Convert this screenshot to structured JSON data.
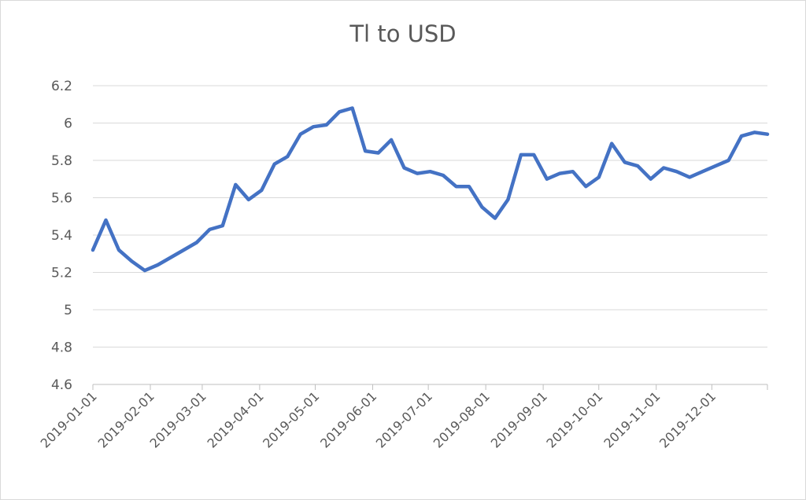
{
  "chart_data": {
    "type": "line",
    "title": "Tl to USD",
    "xlabel": "",
    "ylabel": "",
    "ylim": [
      4.6,
      6.2
    ],
    "y_ticks": [
      "4.6",
      "4.8",
      "5",
      "5.2",
      "5.4",
      "5.6",
      "5.8",
      "6",
      "6.2"
    ],
    "x_range": [
      "2019-01-01",
      "2019-12-31"
    ],
    "x_ticks": [
      "2019-01-01",
      "2019-02-01",
      "2019-03-01",
      "2019-04-01",
      "2019-05-01",
      "2019-06-01",
      "2019-07-01",
      "2019-08-01",
      "2019-09-01",
      "2019-10-01",
      "2019-11-01",
      "2019-12-01"
    ],
    "grid": "horizontal",
    "legend": "none",
    "series_color": "#4472c4",
    "series": [
      {
        "x": [
          "2019-01-01",
          "2019-01-08",
          "2019-01-15",
          "2019-01-22",
          "2019-01-29",
          "2019-02-05",
          "2019-02-12",
          "2019-02-19",
          "2019-02-26",
          "2019-03-05",
          "2019-03-12",
          "2019-03-19",
          "2019-03-26",
          "2019-04-02",
          "2019-04-09",
          "2019-04-16",
          "2019-04-23",
          "2019-04-30",
          "2019-05-07",
          "2019-05-14",
          "2019-05-21",
          "2019-05-28",
          "2019-06-04",
          "2019-06-11",
          "2019-06-18",
          "2019-06-25",
          "2019-07-02",
          "2019-07-09",
          "2019-07-16",
          "2019-07-23",
          "2019-07-30",
          "2019-08-06",
          "2019-08-13",
          "2019-08-20",
          "2019-08-27",
          "2019-09-03",
          "2019-09-10",
          "2019-09-17",
          "2019-09-24",
          "2019-10-01",
          "2019-10-08",
          "2019-10-15",
          "2019-10-22",
          "2019-10-29",
          "2019-11-05",
          "2019-11-12",
          "2019-11-19",
          "2019-11-26",
          "2019-12-03",
          "2019-12-10",
          "2019-12-17",
          "2019-12-24",
          "2019-12-31"
        ],
        "values": [
          5.32,
          5.48,
          5.32,
          5.26,
          5.21,
          5.24,
          5.28,
          5.32,
          5.36,
          5.43,
          5.45,
          5.67,
          5.59,
          5.64,
          5.78,
          5.82,
          5.94,
          5.98,
          5.99,
          6.06,
          6.08,
          5.85,
          5.84,
          5.91,
          5.76,
          5.73,
          5.74,
          5.72,
          5.66,
          5.66,
          5.55,
          5.49,
          5.59,
          5.83,
          5.83,
          5.7,
          5.73,
          5.74,
          5.66,
          5.71,
          5.89,
          5.79,
          5.77,
          5.7,
          5.76,
          5.74,
          5.71,
          5.74,
          5.77,
          5.8,
          5.93,
          5.95,
          5.94
        ]
      }
    ]
  }
}
